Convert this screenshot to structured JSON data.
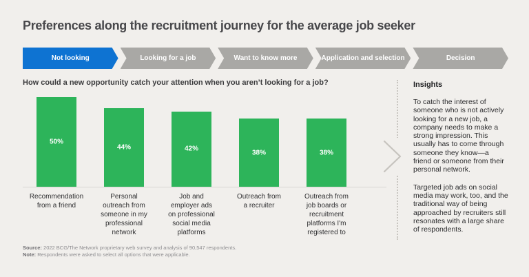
{
  "title": "Preferences along the recruitment journey for the average job seeker",
  "journey": {
    "steps": [
      {
        "label": "Not looking",
        "active": true
      },
      {
        "label": "Looking for a job",
        "active": false
      },
      {
        "label": "Want to know more",
        "active": false
      },
      {
        "label": "Application and selection",
        "active": false
      },
      {
        "label": "Decision",
        "active": false
      }
    ]
  },
  "chart_data": {
    "type": "bar",
    "title": "How could a new opportunity catch your attention when you aren’t looking for a job?",
    "categories": [
      "Recommendation from a friend",
      "Personal outreach from someone in my professional network",
      "Job and employer ads on professional social media platforms",
      "Outreach from a recruiter",
      "Outreach from job boards or recruitment platforms I'm registered to"
    ],
    "category_lines": [
      "Recommendation\nfrom a friend",
      "Personal\noutreach from\nsomeone in my\nprofessional\nnetwork",
      "Job and\nemployer ads\non professional\nsocial media\nplatforms",
      "Outreach from\na recruiter",
      "Outreach from\njob boards or\nrecruitment\nplatforms I'm\nregistered to"
    ],
    "values": [
      50,
      44,
      42,
      38,
      38
    ],
    "value_labels": [
      "50%",
      "44%",
      "42%",
      "38%",
      "38%"
    ],
    "unit": "%",
    "ylim": [
      0,
      50
    ],
    "grid": false,
    "legend": false,
    "value_label_position": "inside-center",
    "bar_color": "#2db45a"
  },
  "insights": {
    "heading": "Insights",
    "paragraphs": [
      "To catch the interest of someone who is not actively looking for a new job, a company needs to make a strong impression. This usually has to come through someone they know—a friend or someone from their personal network.",
      "Targeted job ads on social media may work, too, and the traditional way of being approached by recruiters still resonates with a large share of respondents."
    ]
  },
  "footer": {
    "source_label": "Source:",
    "source_text": "2022 BCG/The Network proprietary web survey and analysis of 90,547 respondents.",
    "note_label": "Note:",
    "note_text": "Respondents were asked to select all options that were applicable."
  },
  "colors": {
    "background": "#f1efec",
    "active_step_blue": "#0e73d2",
    "inactive_step_gray": "#a9a8a5",
    "bar_green": "#2db45a",
    "title_text": "#48484b",
    "baseline_gray": "#d8d6d2",
    "dotted_divider": "#c8c5c0"
  }
}
